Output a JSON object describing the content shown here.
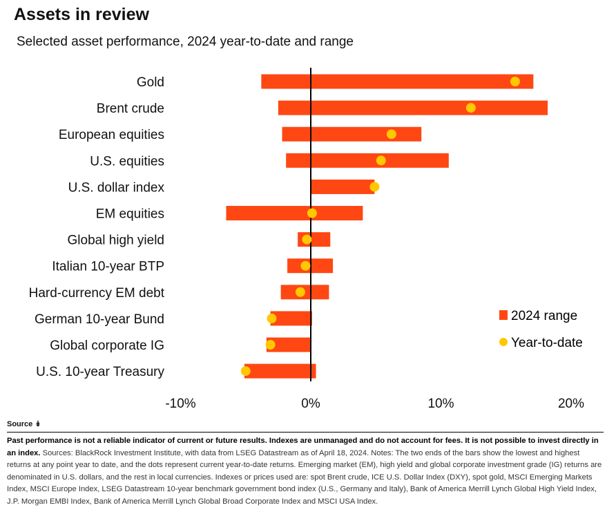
{
  "header": {
    "title": "Assets in review",
    "subtitle": "Selected asset performance, 2024 year-to-date and range"
  },
  "colors": {
    "bar": "#ff4713",
    "dot": "#ffc800",
    "zero_line": "#000000"
  },
  "chart_data": {
    "type": "bar",
    "orientation": "horizontal",
    "title": "Assets in review",
    "subtitle": "Selected asset performance, 2024 year-to-date and range",
    "categories": [
      "Gold",
      "Brent crude",
      "European equities",
      "U.S. equities",
      "U.S. dollar index",
      "EM equities",
      "Global high yield",
      "Italian 10-year BTP",
      "Hard-currency EM debt",
      "German 10-year Bund",
      "Global corporate IG",
      "U.S. 10-year Treasury"
    ],
    "series": [
      {
        "name": "2024 range",
        "kind": "range",
        "low": [
          -3.8,
          -2.5,
          -2.2,
          -1.9,
          0.0,
          -6.5,
          -1.0,
          -1.8,
          -2.3,
          -3.1,
          -3.4,
          -5.1
        ],
        "high": [
          17.1,
          18.2,
          8.5,
          10.6,
          4.9,
          4.0,
          1.5,
          1.7,
          1.4,
          0.1,
          0.0,
          0.4
        ]
      },
      {
        "name": "Year-to-date",
        "kind": "point",
        "values": [
          15.7,
          12.3,
          6.2,
          5.4,
          4.9,
          0.1,
          -0.3,
          -0.4,
          -0.8,
          -3.0,
          -3.1,
          -5.0
        ]
      }
    ],
    "x_ticks": [
      -10,
      0,
      10,
      20
    ],
    "x_tick_labels": [
      "-10%",
      "0%",
      "10%",
      "20%"
    ],
    "xlim": [
      -10,
      20
    ],
    "grid": false,
    "legend_position": "right"
  },
  "footer": {
    "source_label": "Source",
    "disclaimer": "Past performance is not a reliable indicator of current or future results. Indexes are unmanaged and do not account for fees. It is not possible to invest directly in an index.",
    "notes": "Sources: BlackRock Investment Institute, with data from LSEG Datastream as of April 18, 2024. Notes: The two ends of the bars show the lowest and highest returns at any point year to date, and the dots represent current year-to-date returns. Emerging market (EM), high yield and global corporate investment grade (IG) returns are denominated in U.S. dollars, and the rest in local currencies. Indexes or prices used are: spot Brent crude, ICE U.S. Dollar Index (DXY), spot gold, MSCI Emerging Markets Index, MSCI Europe Index, LSEG Datastream 10-year benchmark government bond index (U.S., Germany and Italy), Bank of America Merrill Lynch Global High Yield Index, J.P. Morgan EMBI Index, Bank of America Merrill Lynch Global Broad Corporate Index and MSCI USA Index."
  }
}
